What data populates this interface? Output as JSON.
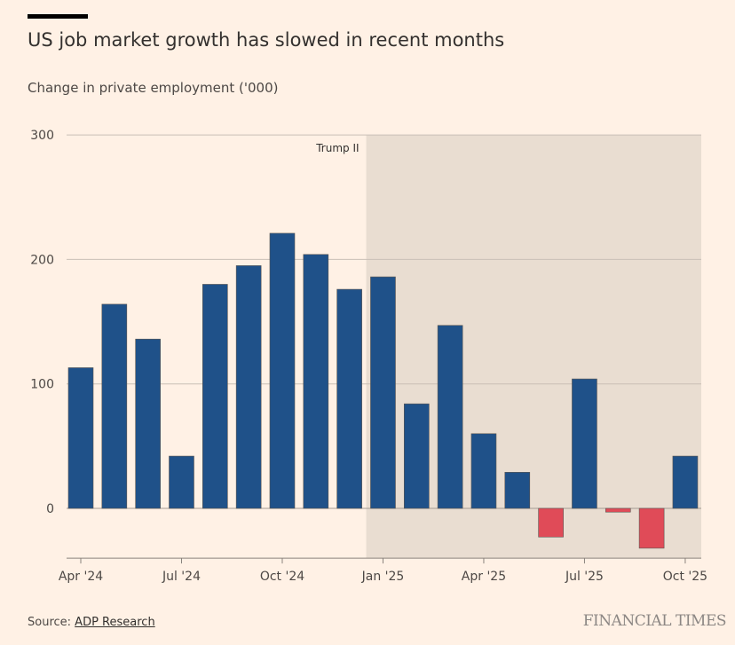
{
  "title": "US job market growth has slowed in recent months",
  "subtitle": "Change in private employment ('000)",
  "source_label": "Source:",
  "source_link": "ADP Research",
  "brand": "FINANCIAL TIMES",
  "chart_data": {
    "type": "bar",
    "categories": [
      "Apr 2024",
      "May 2024",
      "Jun 2024",
      "Jul 2024",
      "Aug 2024",
      "Sep 2024",
      "Oct 2024",
      "Nov 2024",
      "Dec 2024",
      "Jan 2025",
      "Feb 2025",
      "Mar 2025",
      "Apr 2025",
      "May 2025",
      "Jun 2025",
      "Jul 2025",
      "Aug 2025",
      "Sep 2025",
      "Oct 2025"
    ],
    "values": [
      113,
      164,
      136,
      42,
      180,
      195,
      221,
      204,
      176,
      186,
      84,
      147,
      60,
      29,
      -23,
      104,
      -3,
      -32,
      42
    ],
    "xtick_labels": [
      {
        "index": 0,
        "label": "Apr '24"
      },
      {
        "index": 3,
        "label": "Jul '24"
      },
      {
        "index": 6,
        "label": "Oct '24"
      },
      {
        "index": 9,
        "label": "Jan '25"
      },
      {
        "index": 12,
        "label": "Apr '25"
      },
      {
        "index": 15,
        "label": "Jul '25"
      },
      {
        "index": 18,
        "label": "Oct '25"
      }
    ],
    "yticks": [
      0,
      100,
      200,
      300
    ],
    "ylim": [
      -40,
      300
    ],
    "grid": true,
    "annotation": {
      "label": "Trump II",
      "shaded_from_index": 9
    },
    "colors": {
      "positive": "#1f5189",
      "negative": "#e04b58",
      "shade": "#e9ddd1",
      "grid": "#c9bfb6"
    }
  }
}
